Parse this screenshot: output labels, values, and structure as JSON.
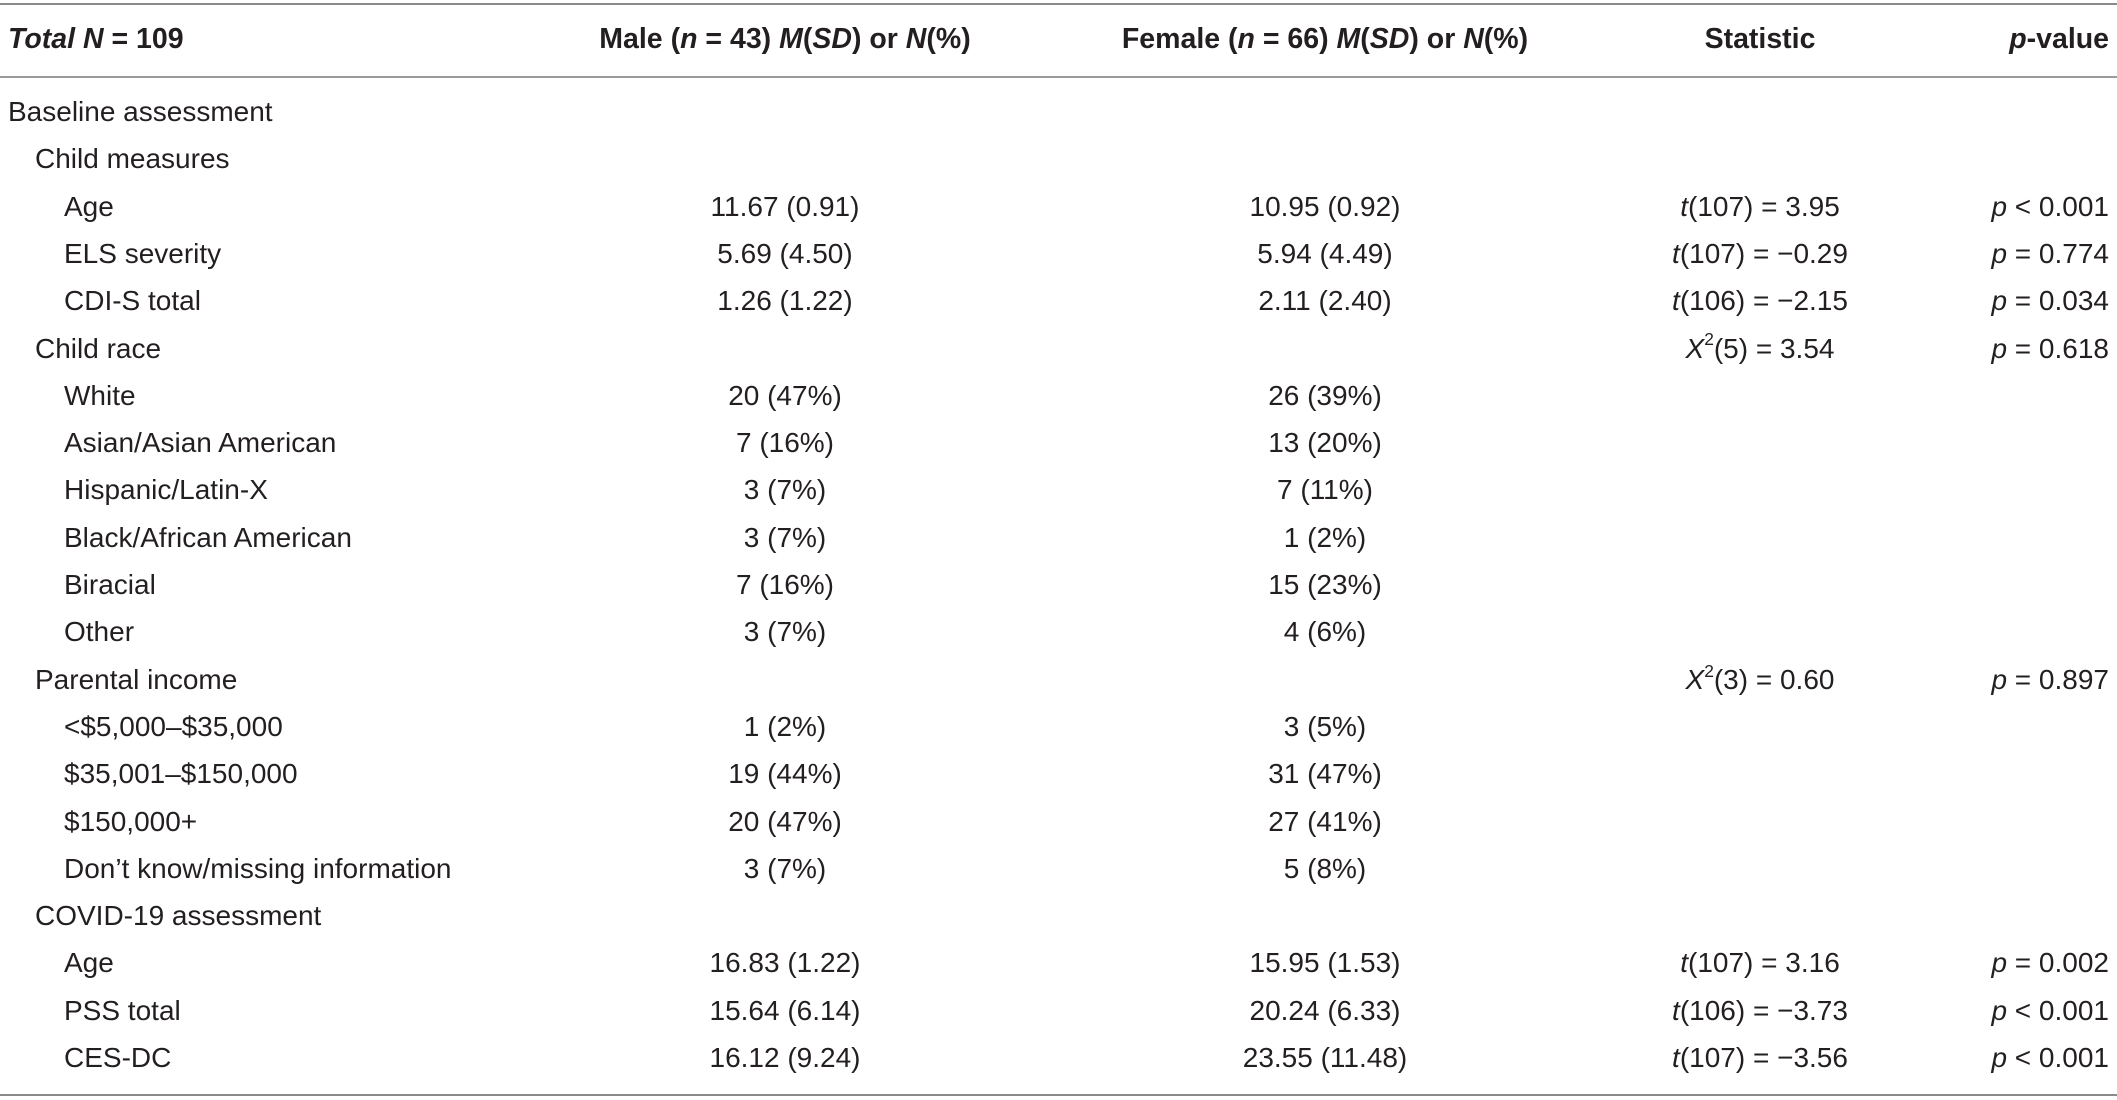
{
  "header": {
    "col_label": "Total N = 109",
    "col_male": "Male (n = 43) M(SD) or N(%)",
    "col_female": "Female (n = 66) M(SD) or N(%)",
    "col_stat": "Statistic",
    "col_p": "p-value"
  },
  "rows": [
    {
      "label": "Baseline assessment",
      "male": "",
      "female": "",
      "stat": "",
      "p": ""
    },
    {
      "label": "Child measures",
      "male": "",
      "female": "",
      "stat": "",
      "p": ""
    },
    {
      "label": "Age",
      "male": "11.67 (0.91)",
      "female": "10.95 (0.92)",
      "stat": "t(107) = 3.95",
      "p": "p < 0.001"
    },
    {
      "label": "ELS severity",
      "male": "5.69 (4.50)",
      "female": "5.94 (4.49)",
      "stat": "t(107) = −0.29",
      "p": "p = 0.774"
    },
    {
      "label": "CDI-S total",
      "male": "1.26 (1.22)",
      "female": "2.11 (2.40)",
      "stat": "t(106) = −2.15",
      "p": "p = 0.034"
    },
    {
      "label": "Child race",
      "male": "",
      "female": "",
      "stat": "X2(5) = 3.54",
      "p": "p = 0.618"
    },
    {
      "label": "White",
      "male": "20 (47%)",
      "female": "26 (39%)",
      "stat": "",
      "p": ""
    },
    {
      "label": "Asian/Asian American",
      "male": "7 (16%)",
      "female": "13 (20%)",
      "stat": "",
      "p": ""
    },
    {
      "label": "Hispanic/Latin-X",
      "male": "3 (7%)",
      "female": "7 (11%)",
      "stat": "",
      "p": ""
    },
    {
      "label": "Black/African American",
      "male": "3 (7%)",
      "female": "1 (2%)",
      "stat": "",
      "p": ""
    },
    {
      "label": "Biracial",
      "male": "7 (16%)",
      "female": "15 (23%)",
      "stat": "",
      "p": ""
    },
    {
      "label": "Other",
      "male": "3 (7%)",
      "female": "4 (6%)",
      "stat": "",
      "p": ""
    },
    {
      "label": "Parental income",
      "male": "",
      "female": "",
      "stat": "X2(3) = 0.60",
      "p": "p = 0.897"
    },
    {
      "label": "<$5,000–$35,000",
      "male": "1 (2%)",
      "female": "3 (5%)",
      "stat": "",
      "p": ""
    },
    {
      "label": "$35,001–$150,000",
      "male": "19 (44%)",
      "female": "31 (47%)",
      "stat": "",
      "p": ""
    },
    {
      "label": "$150,000+",
      "male": "20 (47%)",
      "female": "27 (41%)",
      "stat": "",
      "p": ""
    },
    {
      "label": "Don’t know/missing information",
      "male": "3 (7%)",
      "female": "5 (8%)",
      "stat": "",
      "p": ""
    },
    {
      "label": "COVID-19 assessment",
      "male": "",
      "female": "",
      "stat": "",
      "p": ""
    },
    {
      "label": "Age",
      "male": "16.83 (1.22)",
      "female": "15.95 (1.53)",
      "stat": "t(107) = 3.16",
      "p": "p = 0.002"
    },
    {
      "label": "PSS total",
      "male": "15.64 (6.14)",
      "female": "20.24 (6.33)",
      "stat": "t(106) = −3.73",
      "p": "p < 0.001"
    },
    {
      "label": "CES-DC",
      "male": "16.12 (9.24)",
      "female": "23.55 (11.48)",
      "stat": "t(107) = −3.56",
      "p": "p < 0.001"
    }
  ]
}
